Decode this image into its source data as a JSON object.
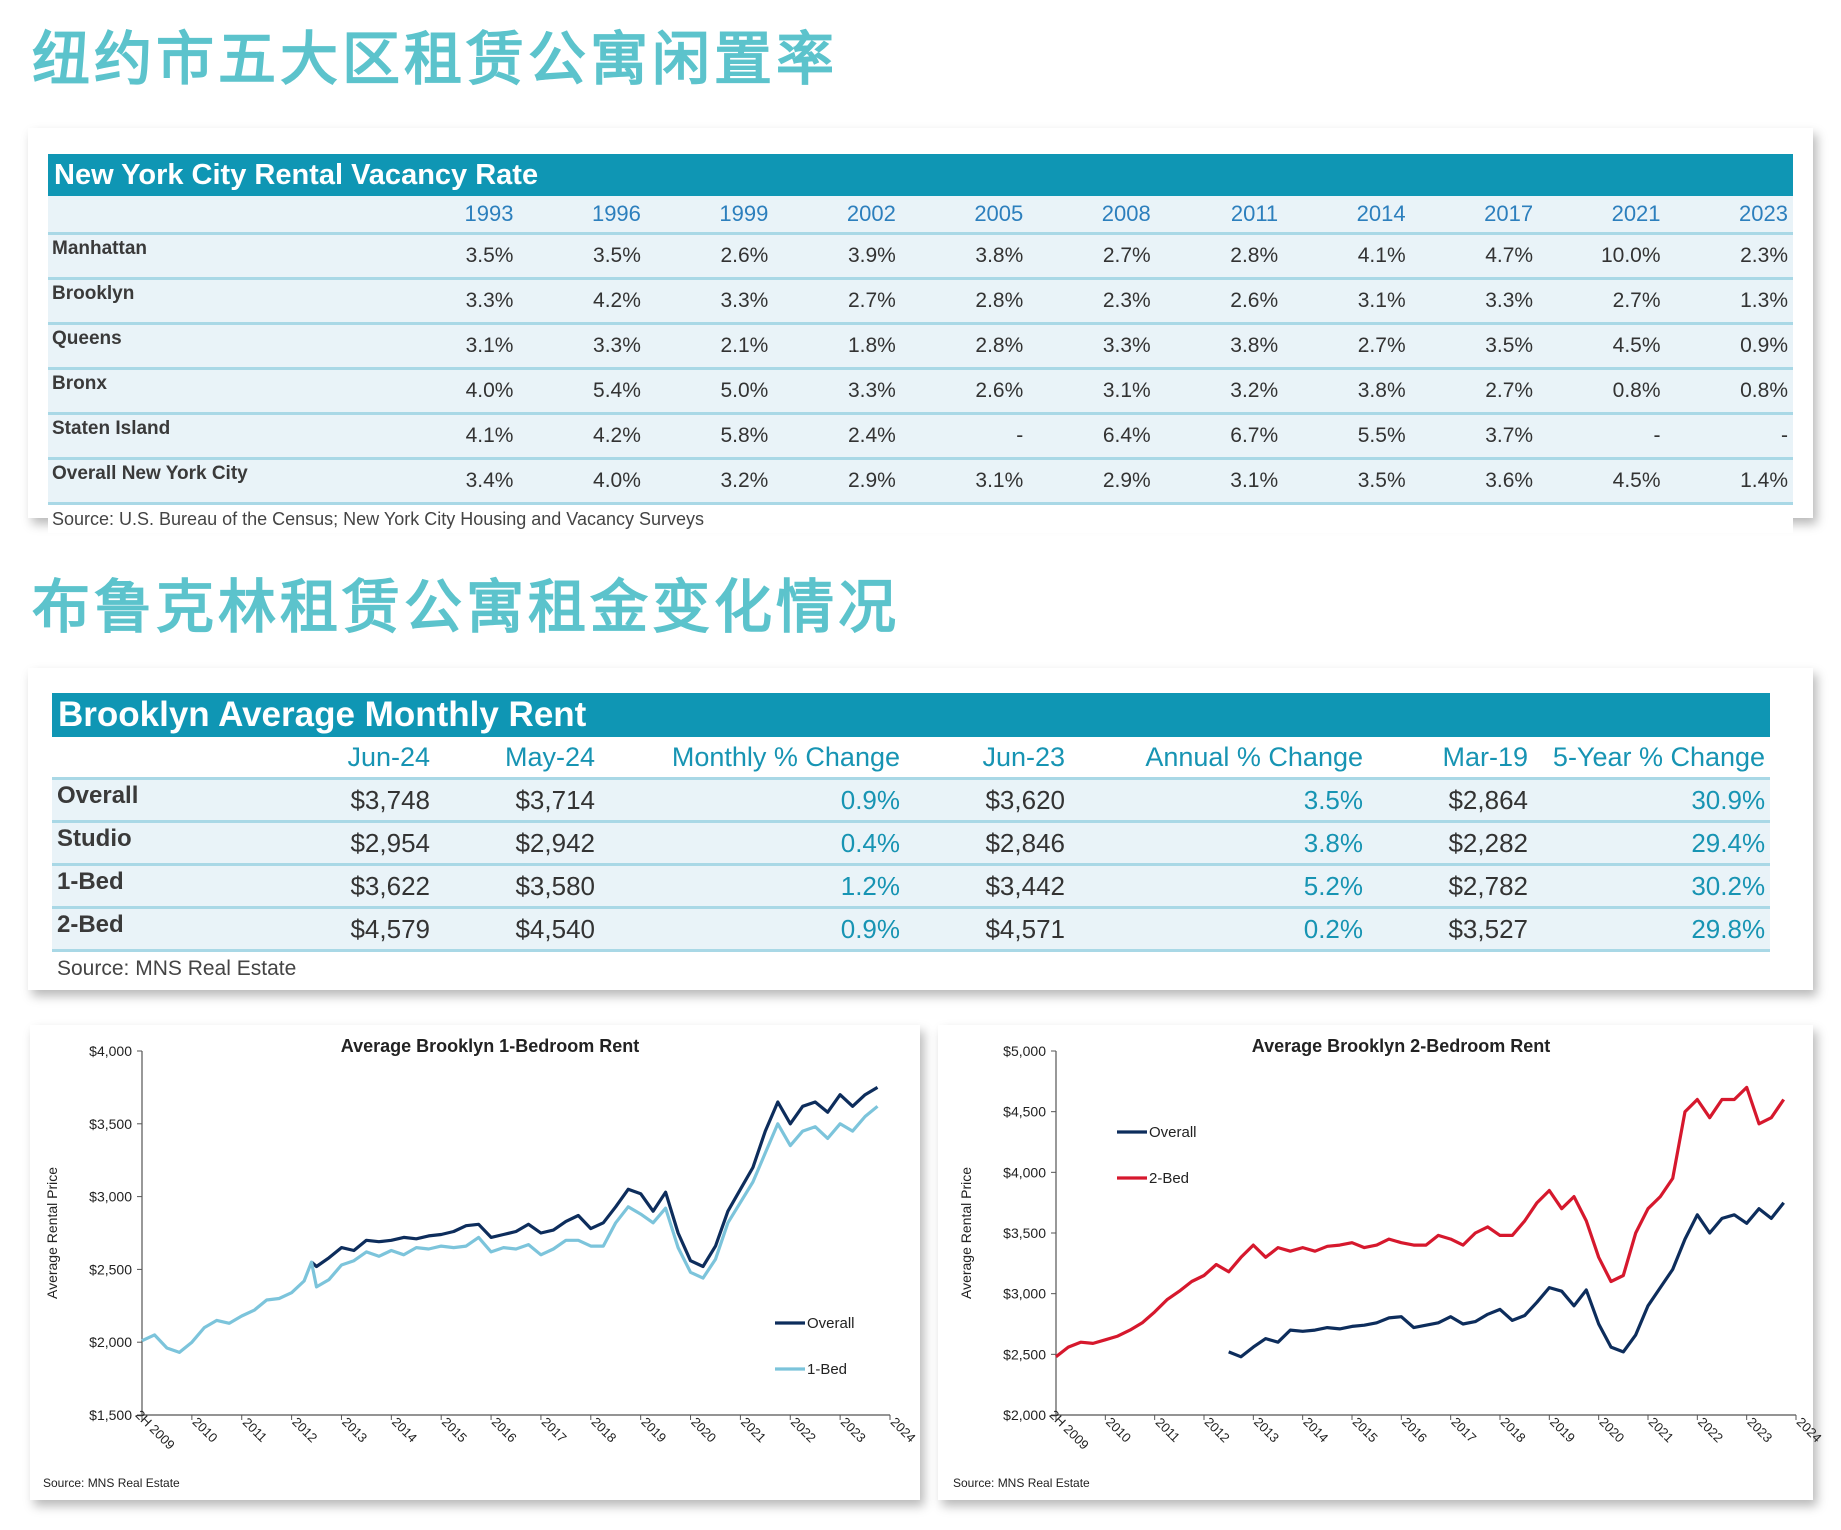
{
  "headings": {
    "vacancy_cn": "纽约市五大区租赁公寓闲置率",
    "rent_cn": "布鲁克林租赁公寓租金变化情况"
  },
  "vacancy_table": {
    "title": "New York City Rental Vacancy Rate",
    "years": [
      "1993",
      "1996",
      "1999",
      "2002",
      "2005",
      "2008",
      "2011",
      "2014",
      "2017",
      "2021",
      "2023"
    ],
    "rows": [
      {
        "label": "Manhattan",
        "values": [
          "3.5%",
          "3.5%",
          "2.6%",
          "3.9%",
          "3.8%",
          "2.7%",
          "2.8%",
          "4.1%",
          "4.7%",
          "10.0%",
          "2.3%"
        ]
      },
      {
        "label": "Brooklyn",
        "values": [
          "3.3%",
          "4.2%",
          "3.3%",
          "2.7%",
          "2.8%",
          "2.3%",
          "2.6%",
          "3.1%",
          "3.3%",
          "2.7%",
          "1.3%"
        ]
      },
      {
        "label": "Queens",
        "values": [
          "3.1%",
          "3.3%",
          "2.1%",
          "1.8%",
          "2.8%",
          "3.3%",
          "3.8%",
          "2.7%",
          "3.5%",
          "4.5%",
          "0.9%"
        ]
      },
      {
        "label": "Bronx",
        "values": [
          "4.0%",
          "5.4%",
          "5.0%",
          "3.3%",
          "2.6%",
          "3.1%",
          "3.2%",
          "3.8%",
          "2.7%",
          "0.8%",
          "0.8%"
        ]
      },
      {
        "label": "Staten Island",
        "values": [
          "4.1%",
          "4.2%",
          "5.8%",
          "2.4%",
          "-",
          "6.4%",
          "6.7%",
          "5.5%",
          "3.7%",
          "-",
          "-"
        ]
      },
      {
        "label": "Overall New York City",
        "values": [
          "3.4%",
          "4.0%",
          "3.2%",
          "2.9%",
          "3.1%",
          "2.9%",
          "3.1%",
          "3.5%",
          "3.6%",
          "4.5%",
          "1.4%"
        ]
      }
    ],
    "source": "Source: U.S. Bureau of the Census; New York City Housing and Vacancy Surveys"
  },
  "rent_table": {
    "title": "Brooklyn Average Monthly Rent",
    "columns": [
      "Jun-24",
      "May-24",
      "Monthly % Change",
      "Jun-23",
      "Annual % Change",
      "Mar-19",
      "5-Year % Change"
    ],
    "rows": [
      {
        "label": "Overall",
        "values": [
          "$3,748",
          "$3,714",
          "0.9%",
          "$3,620",
          "3.5%",
          "$2,864",
          "30.9%"
        ]
      },
      {
        "label": "Studio",
        "values": [
          "$2,954",
          "$2,942",
          "0.4%",
          "$2,846",
          "3.8%",
          "$2,282",
          "29.4%"
        ]
      },
      {
        "label": "1-Bed",
        "values": [
          "$3,622",
          "$3,580",
          "1.2%",
          "$3,442",
          "5.2%",
          "$2,782",
          "30.2%"
        ]
      },
      {
        "label": "2-Bed",
        "values": [
          "$4,579",
          "$4,540",
          "0.9%",
          "$4,571",
          "0.2%",
          "$3,527",
          "29.8%"
        ]
      }
    ],
    "source": "Source: MNS Real Estate"
  },
  "chart_data": [
    {
      "type": "line",
      "title": "Average Brooklyn 1-Bedroom Rent",
      "ylabel": "Average Rental Price",
      "ylim": [
        1500,
        4000
      ],
      "yticks": [
        "$1,500",
        "$2,000",
        "$2,500",
        "$3,000",
        "$3,500",
        "$4,000"
      ],
      "xlim": [
        2009.5,
        2024.5
      ],
      "xticks": [
        "2H 2009",
        "2010",
        "2011",
        "2012",
        "2013",
        "2014",
        "2015",
        "2016",
        "2017",
        "2018",
        "2019",
        "2020",
        "2021",
        "2022",
        "2023",
        "2024"
      ],
      "source": "Source: MNS Real Estate",
      "legend": "center-right",
      "series": [
        {
          "name": "Overall",
          "color": "#0d2d5c",
          "x": [
            2012.9,
            2013.0,
            2013.25,
            2013.5,
            2013.75,
            2014.0,
            2014.25,
            2014.5,
            2014.75,
            2015.0,
            2015.25,
            2015.5,
            2015.75,
            2016.0,
            2016.25,
            2016.5,
            2016.75,
            2017.0,
            2017.25,
            2017.5,
            2017.75,
            2018.0,
            2018.25,
            2018.5,
            2018.75,
            2019.0,
            2019.25,
            2019.5,
            2019.75,
            2020.0,
            2020.25,
            2020.5,
            2020.75,
            2021.0,
            2021.25,
            2021.5,
            2021.75,
            2022.0,
            2022.25,
            2022.5,
            2022.75,
            2023.0,
            2023.25,
            2023.5,
            2023.75,
            2024.0,
            2024.25
          ],
          "y": [
            2550,
            2520,
            2580,
            2650,
            2630,
            2700,
            2690,
            2700,
            2720,
            2710,
            2730,
            2740,
            2760,
            2800,
            2810,
            2720,
            2740,
            2760,
            2810,
            2750,
            2770,
            2830,
            2870,
            2780,
            2820,
            2930,
            3050,
            3020,
            2900,
            3030,
            2750,
            2560,
            2520,
            2660,
            2900,
            3050,
            3200,
            3450,
            3650,
            3500,
            3620,
            3650,
            3580,
            3700,
            3620,
            3700,
            3750
          ]
        },
        {
          "name": "1-Bed",
          "color": "#7cc4db",
          "x": [
            2009.5,
            2009.75,
            2010.0,
            2010.25,
            2010.5,
            2010.75,
            2011.0,
            2011.25,
            2011.5,
            2011.75,
            2012.0,
            2012.25,
            2012.5,
            2012.75,
            2012.9,
            2013.0,
            2013.25,
            2013.5,
            2013.75,
            2014.0,
            2014.25,
            2014.5,
            2014.75,
            2015.0,
            2015.25,
            2015.5,
            2015.75,
            2016.0,
            2016.25,
            2016.5,
            2016.75,
            2017.0,
            2017.25,
            2017.5,
            2017.75,
            2018.0,
            2018.25,
            2018.5,
            2018.75,
            2019.0,
            2019.25,
            2019.5,
            2019.75,
            2020.0,
            2020.25,
            2020.5,
            2020.75,
            2021.0,
            2021.25,
            2021.5,
            2021.75,
            2022.0,
            2022.25,
            2022.5,
            2022.75,
            2023.0,
            2023.25,
            2023.5,
            2023.75,
            2024.0,
            2024.25
          ],
          "y": [
            2010,
            2050,
            1960,
            1930,
            2000,
            2100,
            2150,
            2130,
            2180,
            2220,
            2290,
            2300,
            2340,
            2420,
            2550,
            2380,
            2430,
            2530,
            2560,
            2620,
            2590,
            2630,
            2600,
            2650,
            2640,
            2660,
            2650,
            2660,
            2720,
            2620,
            2650,
            2640,
            2670,
            2600,
            2640,
            2700,
            2700,
            2660,
            2660,
            2820,
            2930,
            2880,
            2820,
            2920,
            2650,
            2480,
            2440,
            2570,
            2820,
            2960,
            3100,
            3300,
            3500,
            3350,
            3450,
            3480,
            3400,
            3500,
            3450,
            3550,
            3620
          ]
        }
      ]
    },
    {
      "type": "line",
      "title": "Average Brooklyn 2-Bedroom Rent",
      "ylabel": "Average Rental Price",
      "ylim": [
        2000,
        5000
      ],
      "yticks": [
        "$2,000",
        "$2,500",
        "$3,000",
        "$3,500",
        "$4,000",
        "$4,500",
        "$5,000"
      ],
      "xlim": [
        2009.5,
        2024.5
      ],
      "xticks": [
        "2H 2009",
        "2010",
        "2011",
        "2012",
        "2013",
        "2014",
        "2015",
        "2016",
        "2017",
        "2018",
        "2019",
        "2020",
        "2021",
        "2022",
        "2023",
        "2024"
      ],
      "source": "Source: MNS Real Estate",
      "legend": "top-left",
      "series": [
        {
          "name": "Overall",
          "color": "#0d2d5c",
          "x": [
            2013.0,
            2013.25,
            2013.5,
            2013.75,
            2014.0,
            2014.25,
            2014.5,
            2014.75,
            2015.0,
            2015.25,
            2015.5,
            2015.75,
            2016.0,
            2016.25,
            2016.5,
            2016.75,
            2017.0,
            2017.25,
            2017.5,
            2017.75,
            2018.0,
            2018.25,
            2018.5,
            2018.75,
            2019.0,
            2019.25,
            2019.5,
            2019.75,
            2020.0,
            2020.25,
            2020.5,
            2020.75,
            2021.0,
            2021.25,
            2021.5,
            2021.75,
            2022.0,
            2022.25,
            2022.5,
            2022.75,
            2023.0,
            2023.25,
            2023.5,
            2023.75,
            2024.0,
            2024.25
          ],
          "y": [
            2520,
            2480,
            2560,
            2630,
            2600,
            2700,
            2690,
            2700,
            2720,
            2710,
            2730,
            2740,
            2760,
            2800,
            2810,
            2720,
            2740,
            2760,
            2810,
            2750,
            2770,
            2830,
            2870,
            2780,
            2820,
            2930,
            3050,
            3020,
            2900,
            3030,
            2750,
            2560,
            2520,
            2660,
            2900,
            3050,
            3200,
            3450,
            3650,
            3500,
            3620,
            3650,
            3580,
            3700,
            3620,
            3750
          ]
        },
        {
          "name": "2-Bed",
          "color": "#d6182d",
          "x": [
            2009.5,
            2009.75,
            2010.0,
            2010.25,
            2010.5,
            2010.75,
            2011.0,
            2011.25,
            2011.5,
            2011.75,
            2012.0,
            2012.25,
            2012.5,
            2012.75,
            2013.0,
            2013.25,
            2013.5,
            2013.75,
            2014.0,
            2014.25,
            2014.5,
            2014.75,
            2015.0,
            2015.25,
            2015.5,
            2015.75,
            2016.0,
            2016.25,
            2016.5,
            2016.75,
            2017.0,
            2017.25,
            2017.5,
            2017.75,
            2018.0,
            2018.25,
            2018.5,
            2018.75,
            2019.0,
            2019.25,
            2019.5,
            2019.75,
            2020.0,
            2020.25,
            2020.5,
            2020.75,
            2021.0,
            2021.25,
            2021.5,
            2021.75,
            2022.0,
            2022.25,
            2022.5,
            2022.75,
            2023.0,
            2023.25,
            2023.5,
            2023.75,
            2024.0,
            2024.25
          ],
          "y": [
            2480,
            2560,
            2600,
            2590,
            2620,
            2650,
            2700,
            2760,
            2850,
            2950,
            3020,
            3100,
            3150,
            3240,
            3180,
            3300,
            3400,
            3300,
            3380,
            3350,
            3380,
            3350,
            3390,
            3400,
            3420,
            3380,
            3400,
            3450,
            3420,
            3400,
            3400,
            3480,
            3450,
            3400,
            3500,
            3550,
            3480,
            3480,
            3600,
            3750,
            3850,
            3700,
            3800,
            3600,
            3300,
            3100,
            3150,
            3500,
            3700,
            3800,
            3950,
            4500,
            4600,
            4450,
            4600,
            4600,
            4700,
            4400,
            4450,
            4600
          ]
        }
      ]
    }
  ]
}
